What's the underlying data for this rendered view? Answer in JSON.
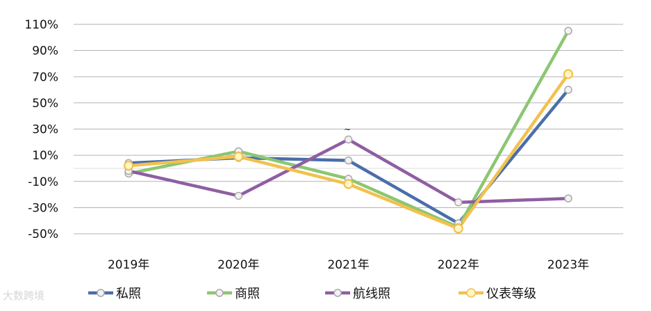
{
  "chart_data": {
    "type": "line",
    "title": "",
    "xlabel": "",
    "ylabel": "",
    "categories": [
      "2019年",
      "2020年",
      "2021年",
      "2022年",
      "2023年"
    ],
    "y_ticks": [
      "110%",
      "90%",
      "70%",
      "50%",
      "30%",
      "10%",
      "-10%",
      "-30%",
      "-50%"
    ],
    "ylim": [
      -50,
      110
    ],
    "y_unit": "%",
    "grid": true,
    "legend_position": "bottom",
    "series": [
      {
        "name": "私照",
        "color": "#4a6eaa",
        "values": [
          4,
          8,
          6,
          -42,
          60
        ]
      },
      {
        "name": "商照",
        "color": "#8cc672",
        "values": [
          -4,
          13,
          -8,
          -45,
          105
        ]
      },
      {
        "name": "航线照",
        "color": "#8f5ea2",
        "values": [
          -2,
          -21,
          22,
          -26,
          -23
        ]
      },
      {
        "name": "仪表等级",
        "color": "#f2c14e",
        "values": [
          2,
          9,
          -12,
          -46,
          72
        ]
      }
    ],
    "annotation": "~"
  },
  "watermark_text": "大数跨境"
}
